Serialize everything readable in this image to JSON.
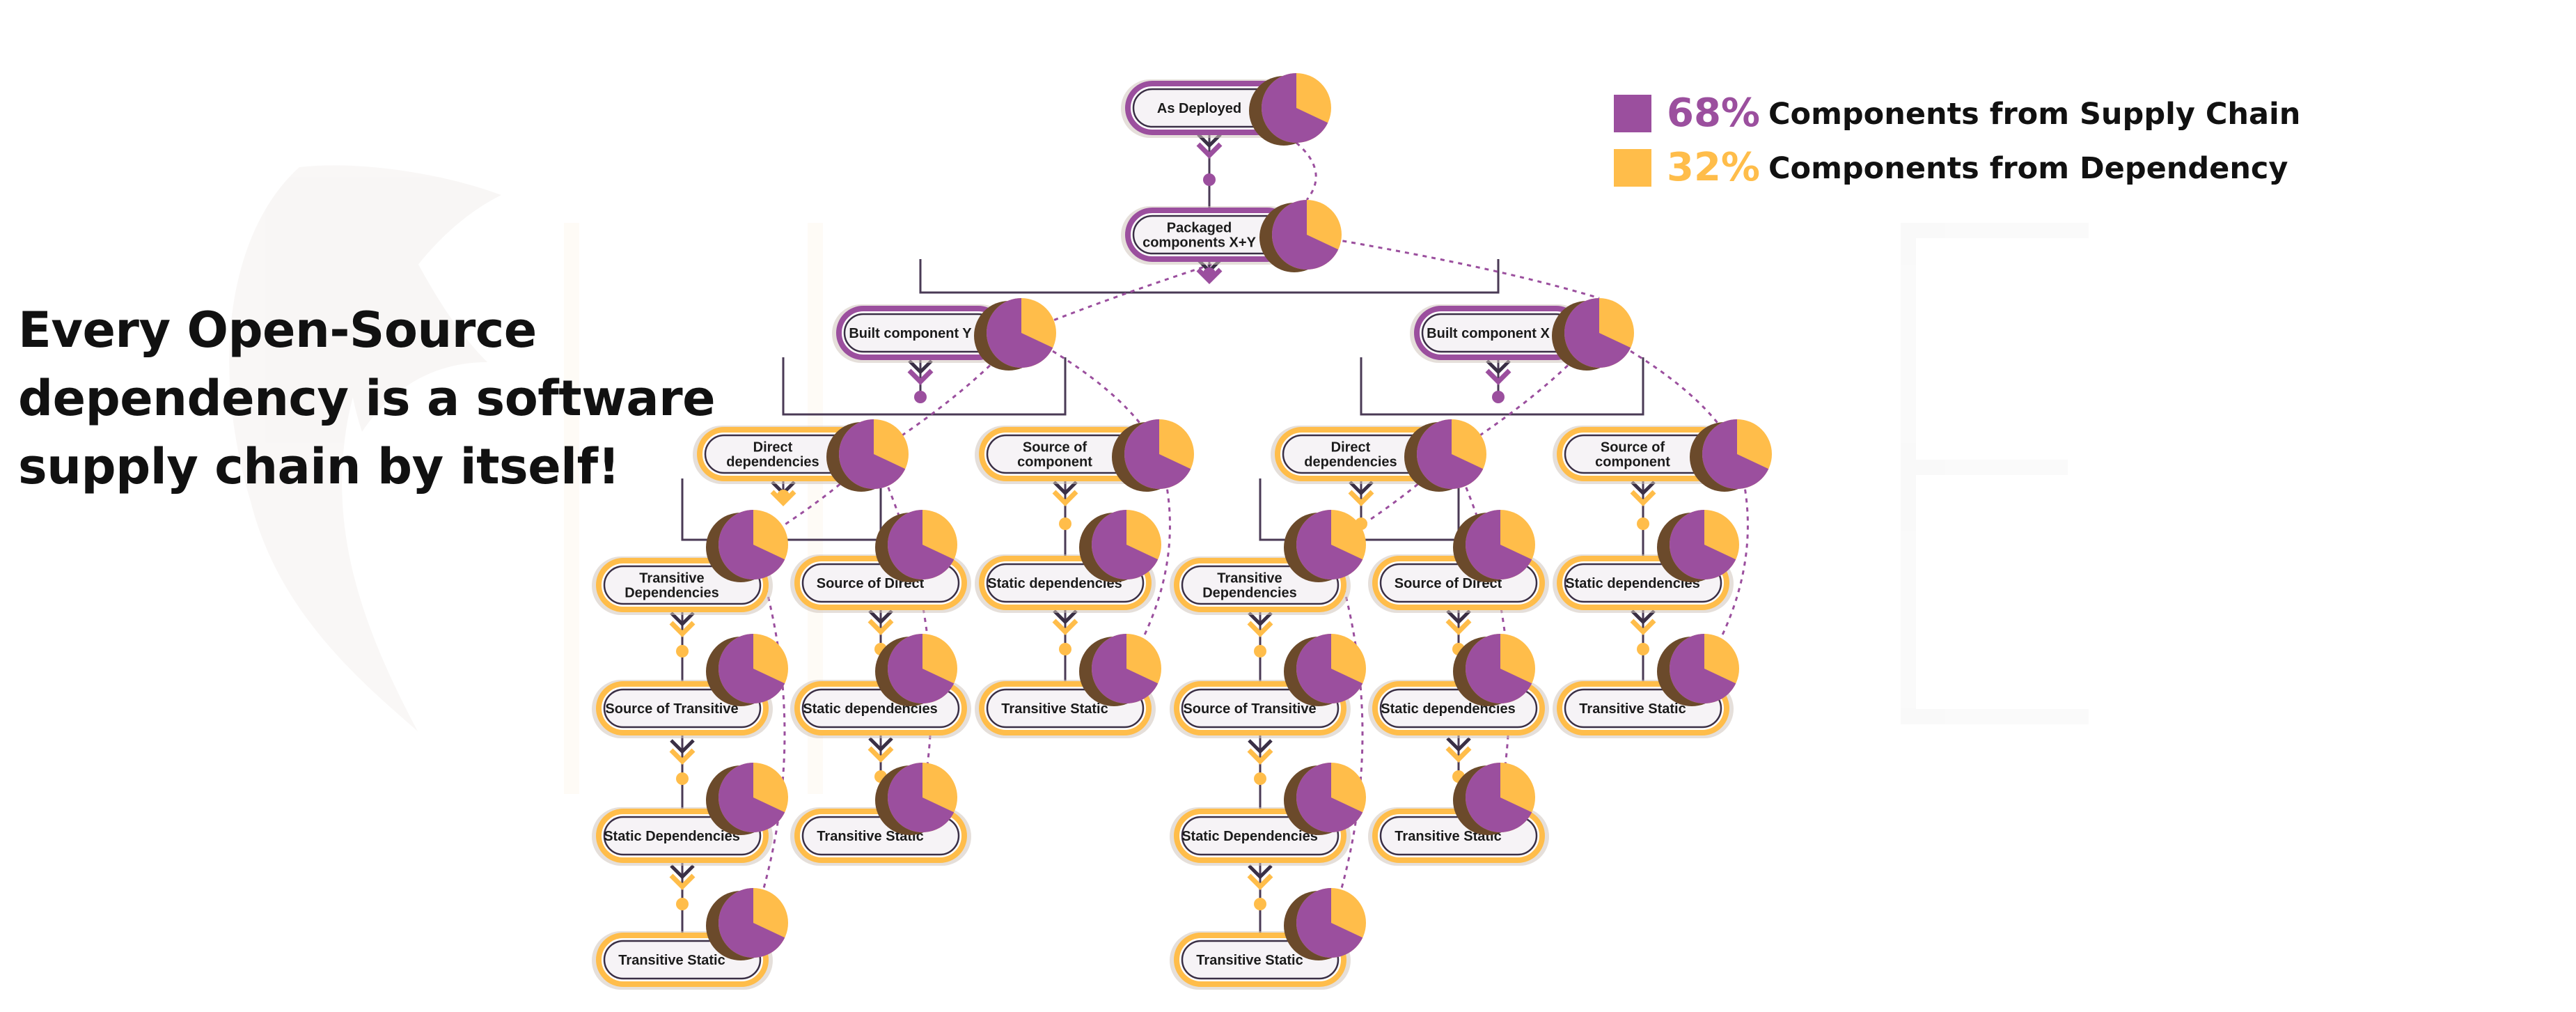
{
  "heading": {
    "lines": [
      "Every Open-Source",
      "dependency is a software",
      "supply chain by itself!"
    ]
  },
  "legend": {
    "items": [
      {
        "percent": "68%",
        "label": "Components from Supply Chain",
        "color": "#9b4f9e"
      },
      {
        "percent": "32%",
        "label": "Components from Dependency",
        "color": "#ffbd4a"
      }
    ]
  },
  "diagram": {
    "pie_share": {
      "supply_chain": 0.68,
      "dependency": 0.32
    },
    "nodes": [
      {
        "id": "deployed",
        "lines": [
          "As Deployed"
        ],
        "tier": "purple"
      },
      {
        "id": "packaged",
        "lines": [
          "Packaged",
          "components X+Y"
        ],
        "tier": "purple"
      },
      {
        "id": "built-y",
        "lines": [
          "Built component Y"
        ],
        "tier": "purple"
      },
      {
        "id": "built-x",
        "lines": [
          "Built component X"
        ],
        "tier": "purple"
      },
      {
        "id": "y-direct",
        "lines": [
          "Direct",
          "dependencies"
        ],
        "tier": "orange"
      },
      {
        "id": "y-source",
        "lines": [
          "Source of",
          "component"
        ],
        "tier": "orange"
      },
      {
        "id": "x-direct",
        "lines": [
          "Direct",
          "dependencies"
        ],
        "tier": "orange"
      },
      {
        "id": "x-source",
        "lines": [
          "Source of",
          "component"
        ],
        "tier": "orange"
      },
      {
        "id": "y-trans",
        "lines": [
          "Transitive",
          "Dependencies"
        ],
        "tier": "orange"
      },
      {
        "id": "y-srcdirect",
        "lines": [
          "Source of Direct"
        ],
        "tier": "orange"
      },
      {
        "id": "y-static",
        "lines": [
          "Static dependencies"
        ],
        "tier": "orange"
      },
      {
        "id": "y-srctrans",
        "lines": [
          "Source of Transitive"
        ],
        "tier": "orange"
      },
      {
        "id": "y-staticdeps",
        "lines": [
          "Static dependencies"
        ],
        "tier": "orange"
      },
      {
        "id": "y-transstatic1",
        "lines": [
          "Transitive Static"
        ],
        "tier": "orange"
      },
      {
        "id": "y-staticDeps",
        "lines": [
          "Static Dependencies"
        ],
        "tier": "orange"
      },
      {
        "id": "y-transstatic2",
        "lines": [
          "Transitive Static"
        ],
        "tier": "orange"
      },
      {
        "id": "y-transstatic3",
        "lines": [
          "Transitive Static"
        ],
        "tier": "orange"
      },
      {
        "id": "x-trans",
        "lines": [
          "Transitive",
          "Dependencies"
        ],
        "tier": "orange"
      },
      {
        "id": "x-srcdirect",
        "lines": [
          "Source of Direct"
        ],
        "tier": "orange"
      },
      {
        "id": "x-static",
        "lines": [
          "Static dependencies"
        ],
        "tier": "orange"
      },
      {
        "id": "x-srctrans",
        "lines": [
          "Source of Transitive"
        ],
        "tier": "orange"
      },
      {
        "id": "x-staticdeps",
        "lines": [
          "Static dependencies"
        ],
        "tier": "orange"
      },
      {
        "id": "x-transstatic1",
        "lines": [
          "Transitive Static"
        ],
        "tier": "orange"
      },
      {
        "id": "x-staticDeps",
        "lines": [
          "Static Dependencies"
        ],
        "tier": "orange"
      },
      {
        "id": "x-transstatic2",
        "lines": [
          "Transitive Static"
        ],
        "tier": "orange"
      },
      {
        "id": "x-transstatic3",
        "lines": [
          "Transitive Static"
        ],
        "tier": "orange"
      }
    ]
  }
}
